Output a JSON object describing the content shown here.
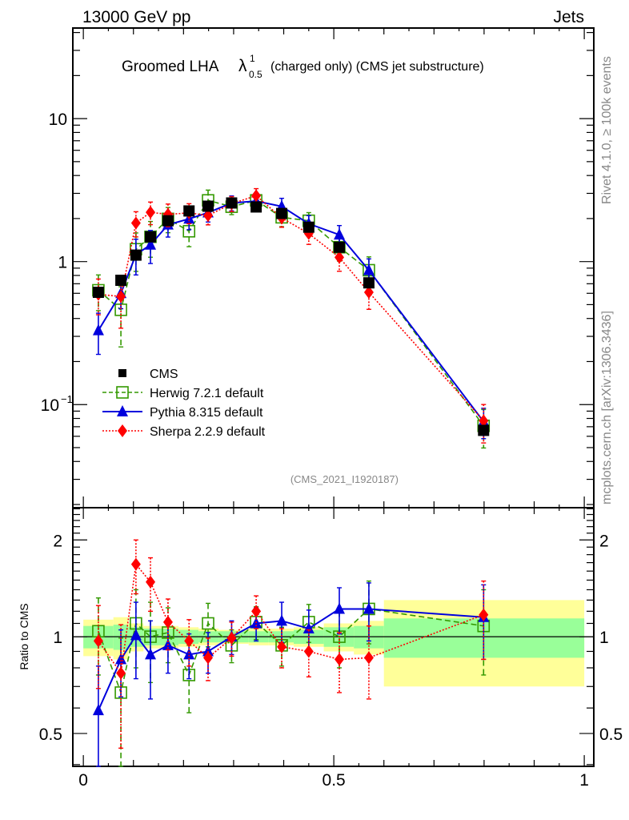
{
  "header": {
    "left": "13000 GeV pp",
    "right": "Jets"
  },
  "side_text": {
    "upper": "Rivet 4.1.0, ≥ 100k events",
    "lower": "mcplots.cern.ch [arXiv:1306.3436]"
  },
  "chart_data": [
    {
      "type": "line",
      "panel": "main",
      "title": "Groomed LHA λ¹₀.₅ (charged only) (CMS jet substructure)",
      "title_parts": {
        "prefix": "Groomed LHA ",
        "lambda": "λ",
        "sup": "1",
        "sub": "0.5",
        "suffix": "(charged only) (CMS jet substructure)"
      },
      "analysis_tag": "(CMS_2021_I1920187)",
      "xlabel": "",
      "ylabel": "",
      "yscale": "log",
      "xlim": [
        -0.021,
        1.019
      ],
      "ylim": [
        0.019,
        43
      ],
      "y_ticks": [
        {
          "value": 10,
          "label": "10"
        },
        {
          "value": 1,
          "label": "1"
        },
        {
          "value": 0.1,
          "label": "10",
          "sup": "−1"
        }
      ],
      "legend_position": "lower-left",
      "x": [
        0.03,
        0.075,
        0.105,
        0.134,
        0.169,
        0.211,
        0.249,
        0.296,
        0.345,
        0.396,
        0.45,
        0.511,
        0.57,
        0.799
      ],
      "series": [
        {
          "name": "CMS",
          "style": "data",
          "color": "#000000",
          "values": [
            0.61,
            0.74,
            1.11,
            1.49,
            1.93,
            2.26,
            2.44,
            2.57,
            2.41,
            2.17,
            1.74,
            1.26,
            0.71,
            0.066
          ],
          "rel_err": [
            0.12,
            0.1,
            0.18,
            0.16,
            0.1,
            0.08,
            0.06,
            0.06,
            0.08,
            0.08,
            0.08,
            0.1,
            0.14,
            0.25
          ]
        },
        {
          "name": "Herwig 7.2.1 default",
          "style": "dashed",
          "marker": "open-square",
          "color": "#339900",
          "values": [
            0.63,
            0.46,
            1.22,
            1.49,
            1.99,
            1.63,
            2.68,
            2.42,
            2.68,
            2.04,
            1.93,
            1.26,
            0.87,
            0.071
          ],
          "rel_err": [
            0.28,
            0.45,
            0.3,
            0.28,
            0.2,
            0.22,
            0.18,
            0.12,
            0.12,
            0.14,
            0.14,
            0.2,
            0.24,
            0.3
          ]
        },
        {
          "name": "Pythia 8.315 default",
          "style": "solid",
          "marker": "filled-triangle",
          "color": "#0000dd",
          "values": [
            0.33,
            0.6,
            1.12,
            1.31,
            1.81,
            1.99,
            2.2,
            2.57,
            2.65,
            2.43,
            1.84,
            1.54,
            0.87,
            0.076
          ],
          "rel_err": [
            0.32,
            0.22,
            0.28,
            0.26,
            0.18,
            0.16,
            0.14,
            0.12,
            0.12,
            0.14,
            0.14,
            0.16,
            0.2,
            0.24
          ]
        },
        {
          "name": "Sherpa 2.2.9 default",
          "style": "dotted",
          "marker": "filled-diamond",
          "color": "#ff0000",
          "values": [
            0.59,
            0.57,
            1.86,
            2.21,
            2.14,
            2.19,
            2.1,
            2.54,
            2.89,
            2.02,
            1.57,
            1.07,
            0.61,
            0.077
          ],
          "rel_err": [
            0.28,
            0.4,
            0.2,
            0.18,
            0.18,
            0.16,
            0.14,
            0.12,
            0.12,
            0.14,
            0.16,
            0.2,
            0.24,
            0.3
          ]
        }
      ]
    },
    {
      "type": "line",
      "panel": "ratio",
      "ylabel": "Ratio to CMS",
      "xlabel": "",
      "yscale": "log",
      "xlim": [
        -0.021,
        1.019
      ],
      "ylim": [
        0.395,
        2.52
      ],
      "y_ticks": [
        {
          "value": 2,
          "label": "2"
        },
        {
          "value": 1,
          "label": "1"
        },
        {
          "value": 0.5,
          "label": "0.5"
        }
      ],
      "x_ticks": [
        {
          "value": 0,
          "label": "0"
        },
        {
          "value": 0.5,
          "label": "0.5"
        },
        {
          "value": 1,
          "label": "1"
        }
      ],
      "bin_edges": [
        0.0,
        0.06,
        0.09,
        0.12,
        0.15,
        0.19,
        0.23,
        0.27,
        0.33,
        0.37,
        0.42,
        0.48,
        0.54,
        0.6,
        1.0
      ],
      "band_inner": [
        0.08,
        0.09,
        0.07,
        0.06,
        0.06,
        0.05,
        0.04,
        0.04,
        0.04,
        0.04,
        0.05,
        0.07,
        0.08,
        0.14
      ],
      "band_outer": [
        0.13,
        0.15,
        0.1,
        0.08,
        0.08,
        0.07,
        0.06,
        0.05,
        0.06,
        0.06,
        0.07,
        0.1,
        0.12,
        0.3
      ],
      "band_colors": {
        "inner": "#99ff99",
        "outer": "#ffff99"
      },
      "x": [
        0.03,
        0.075,
        0.105,
        0.134,
        0.169,
        0.211,
        0.249,
        0.296,
        0.345,
        0.396,
        0.45,
        0.511,
        0.57,
        0.799
      ],
      "series": [
        {
          "name": "Herwig 7.2.1 default",
          "color": "#339900",
          "values": [
            1.04,
            0.67,
            1.1,
            1.0,
            1.03,
            0.76,
            1.1,
            0.94,
            1.11,
            0.94,
            1.11,
            1.0,
            1.22,
            1.08
          ],
          "err": [
            0.28,
            0.32,
            0.3,
            0.28,
            0.2,
            0.18,
            0.17,
            0.11,
            0.13,
            0.13,
            0.15,
            0.2,
            0.27,
            0.32
          ]
        },
        {
          "name": "Pythia 8.315 default",
          "color": "#0000dd",
          "values": [
            0.59,
            0.85,
            1.01,
            0.88,
            0.94,
            0.88,
            0.9,
            1.0,
            1.1,
            1.12,
            1.06,
            1.22,
            1.22,
            1.15
          ],
          "err": [
            0.22,
            0.2,
            0.27,
            0.24,
            0.17,
            0.14,
            0.13,
            0.12,
            0.13,
            0.16,
            0.15,
            0.2,
            0.25,
            0.3
          ]
        },
        {
          "name": "Sherpa 2.2.9 default",
          "color": "#ff0000",
          "values": [
            0.97,
            0.77,
            1.68,
            1.48,
            1.11,
            0.97,
            0.86,
            0.99,
            1.2,
            0.93,
            0.9,
            0.85,
            0.86,
            1.17
          ],
          "err": [
            0.28,
            0.32,
            0.32,
            0.28,
            0.2,
            0.16,
            0.13,
            0.12,
            0.14,
            0.13,
            0.15,
            0.18,
            0.22,
            0.32
          ]
        }
      ]
    }
  ]
}
